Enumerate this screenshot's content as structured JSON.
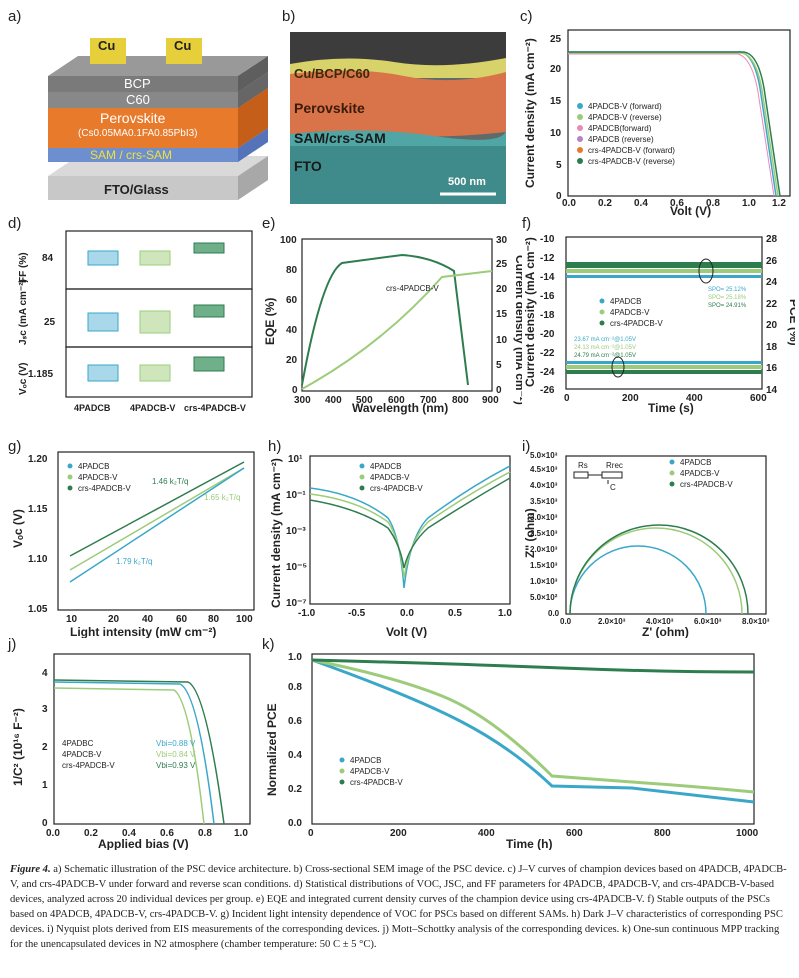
{
  "panels": {
    "a": {
      "label": "a)",
      "layers": [
        "Cu",
        "Cu",
        "BCP",
        "C60",
        "Perovskite",
        "(Cs0.05MA0.1FA0.85PbI3)",
        "SAM / crs-SAM",
        "FTO/Glass"
      ]
    },
    "b": {
      "label": "b)",
      "layers": [
        "Cu/BCP/C60",
        "Perovskite",
        "SAM/crs-SAM",
        "FTO"
      ],
      "scale": "500 nm"
    },
    "c": {
      "label": "c)",
      "xlabel": "Volt (V)",
      "ylabel": "Current density (mA cm⁻²)",
      "xticks": [
        "0.0",
        "0.2",
        "0.4",
        "0.6",
        "0.8",
        "1.0",
        "1.2"
      ],
      "yticks": [
        "0",
        "5",
        "10",
        "15",
        "20",
        "25"
      ],
      "legend": [
        "4PADCB-V (forward)",
        "4PADCB-V (reverse)",
        "4PADCB(forward)",
        "4PADCB (reverse)",
        "crs-4PADCB-V (forward)",
        "crs-4PADCB-V (reverse)"
      ]
    },
    "d": {
      "label": "d)",
      "ylabels": [
        "FF (%)",
        "Jₛᴄ (mA cm⁻²)",
        "Vₒᴄ (V)"
      ],
      "yticks": [
        "84",
        "25",
        "1.185"
      ],
      "groups": [
        "4PADCB",
        "4PADCB-V",
        "crs-4PADCB-V"
      ]
    },
    "e": {
      "label": "e)",
      "xlabel": "Wavelength (nm)",
      "ylabel": "EQE (%)",
      "y2label": "Current density (mA cm⁻²)",
      "series": "crs-4PADCB-V",
      "xticks": [
        "300",
        "400",
        "500",
        "600",
        "700",
        "800",
        "900"
      ],
      "yticks": [
        "0",
        "20",
        "40",
        "60",
        "80",
        "100"
      ],
      "y2ticks": [
        "0",
        "5",
        "10",
        "15",
        "20",
        "25",
        "30"
      ]
    },
    "f": {
      "label": "f)",
      "xlabel": "Time (s)",
      "ylabel": "Current density (mA cm⁻²)",
      "y2label": "PCE (%)",
      "xticks": [
        "0",
        "200",
        "400",
        "600"
      ],
      "yticks": [
        "-26",
        "-24",
        "-22",
        "-20",
        "-18",
        "-16",
        "-14",
        "-12",
        "-10"
      ],
      "y2ticks": [
        "14",
        "16",
        "18",
        "20",
        "22",
        "24",
        "26",
        "28"
      ],
      "legend": [
        "4PADCB",
        "4PADCB-V",
        "crs-4PADCB-V"
      ],
      "spo": [
        "SPO= 25.12%",
        "SPO= 25.18%",
        "SPO= 24.91%"
      ],
      "jnotes": [
        "23.67 mA cm⁻²@1.05V",
        "24.13 mA cm⁻²@1.05V",
        "24.79 mA cm⁻²@1.05V"
      ]
    },
    "g": {
      "label": "g)",
      "xlabel": "Light intensity (mW cm⁻²)",
      "ylabel": "Vₒᴄ (V)",
      "xticks": [
        "10",
        "20",
        "40",
        "60",
        "80",
        "100"
      ],
      "yticks": [
        "1.05",
        "1.10",
        "1.15",
        "1.20"
      ],
      "legend": [
        "4PADCB",
        "4PADCB-V",
        "crs-4PADCB-V"
      ],
      "notes": [
        "1.46 k₂T/q",
        "1.65 k₂T/q",
        "1.79 k₂T/q"
      ]
    },
    "h": {
      "label": "h)",
      "xlabel": "Volt (V)",
      "ylabel": "Current density (mA cm⁻²)",
      "xticks": [
        "-1.0",
        "-0.5",
        "0.0",
        "0.5",
        "1.0"
      ],
      "yticks": [
        "10¹",
        "10⁻¹",
        "10⁻³",
        "10⁻⁵",
        "10⁻⁷"
      ],
      "legend": [
        "4PADCB",
        "4PADCB-V",
        "crs-4PADCB-V"
      ]
    },
    "i": {
      "label": "i)",
      "xlabel": "Z' (ohm)",
      "ylabel": "Z'' (ohm)",
      "xticks": [
        "0.0",
        "2.0×10³",
        "4.0×10³",
        "6.0×10³",
        "8.0×10³"
      ],
      "yticks": [
        "0.0",
        "5.0×10²",
        "1.0×10³",
        "1.5×10³",
        "2.0×10³",
        "2.5×10³",
        "3.0×10³",
        "3.5×10³",
        "4.0×10³",
        "4.5×10³",
        "5.0×10³"
      ],
      "legend": [
        "4PADCB",
        "4PADCB-V",
        "crs-4PADCB-V"
      ],
      "circuit": [
        "Rs",
        "Rrec",
        "C"
      ]
    },
    "j": {
      "label": "j)",
      "xlabel": "Applied bias (V)",
      "ylabel": "1/C² (10¹⁶ F⁻²)",
      "xticks": [
        "0.0",
        "0.2",
        "0.4",
        "0.6",
        "0.8",
        "1.0"
      ],
      "yticks": [
        "0",
        "1",
        "2",
        "3",
        "4"
      ],
      "legend": [
        "4PADBC",
        "4PADCB-V",
        "crs-4PADCB-V"
      ],
      "vbi": [
        "Vbi=0.88 V",
        "Vbi=0.84 V",
        "Vbi=0.93 V"
      ]
    },
    "k": {
      "label": "k)",
      "xlabel": "Time (h)",
      "ylabel": "Normalized PCE",
      "xticks": [
        "0",
        "200",
        "400",
        "600",
        "800",
        "1000"
      ],
      "yticks": [
        "0.0",
        "0.2",
        "0.4",
        "0.6",
        "0.8",
        "1.0"
      ],
      "legend": [
        "4PADCB",
        "4PADCB-V",
        "crs-4PADCB-V"
      ]
    }
  },
  "colors": {
    "c1": "#3aa7c9",
    "c2": "#9ccc7a",
    "c3": "#2e7d4f",
    "orange": "#e87a2c",
    "pink": "#e98ab8"
  },
  "caption": {
    "title": "Figure 4.",
    "text": " a) Schematic illustration of the PSC device architecture. b) Cross-sectional SEM image of the PSC device. c) J–V curves of champion devices based on 4PADCB, 4PADCB-V, and crs-4PADCB-V under forward and reverse scan conditions. d) Statistical distributions of VOC, JSC, and FF parameters for 4PADCB, 4PADCB-V, and crs-4PADCB-V-based devices, analyzed across 20 individual devices per group. e) EQE and integrated current density curves of the champion device using crs-4PADCB-V. f) Stable outputs of the PSCs based on 4PADCB, 4PADCB-V, crs-4PADCB-V. g) Incident light intensity dependence of VOC for PSCs based on different SAMs. h) Dark J–V characteristics of corresponding PSC devices. i) Nyquist plots derived from EIS measurements of the corresponding devices. j) Mott–Schottky analysis of the corresponding devices. k) One-sun continuous MPP tracking for the unencapsulated devices in N2 atmosphere (chamber temperature: 50 C ± 5 °C)."
  }
}
